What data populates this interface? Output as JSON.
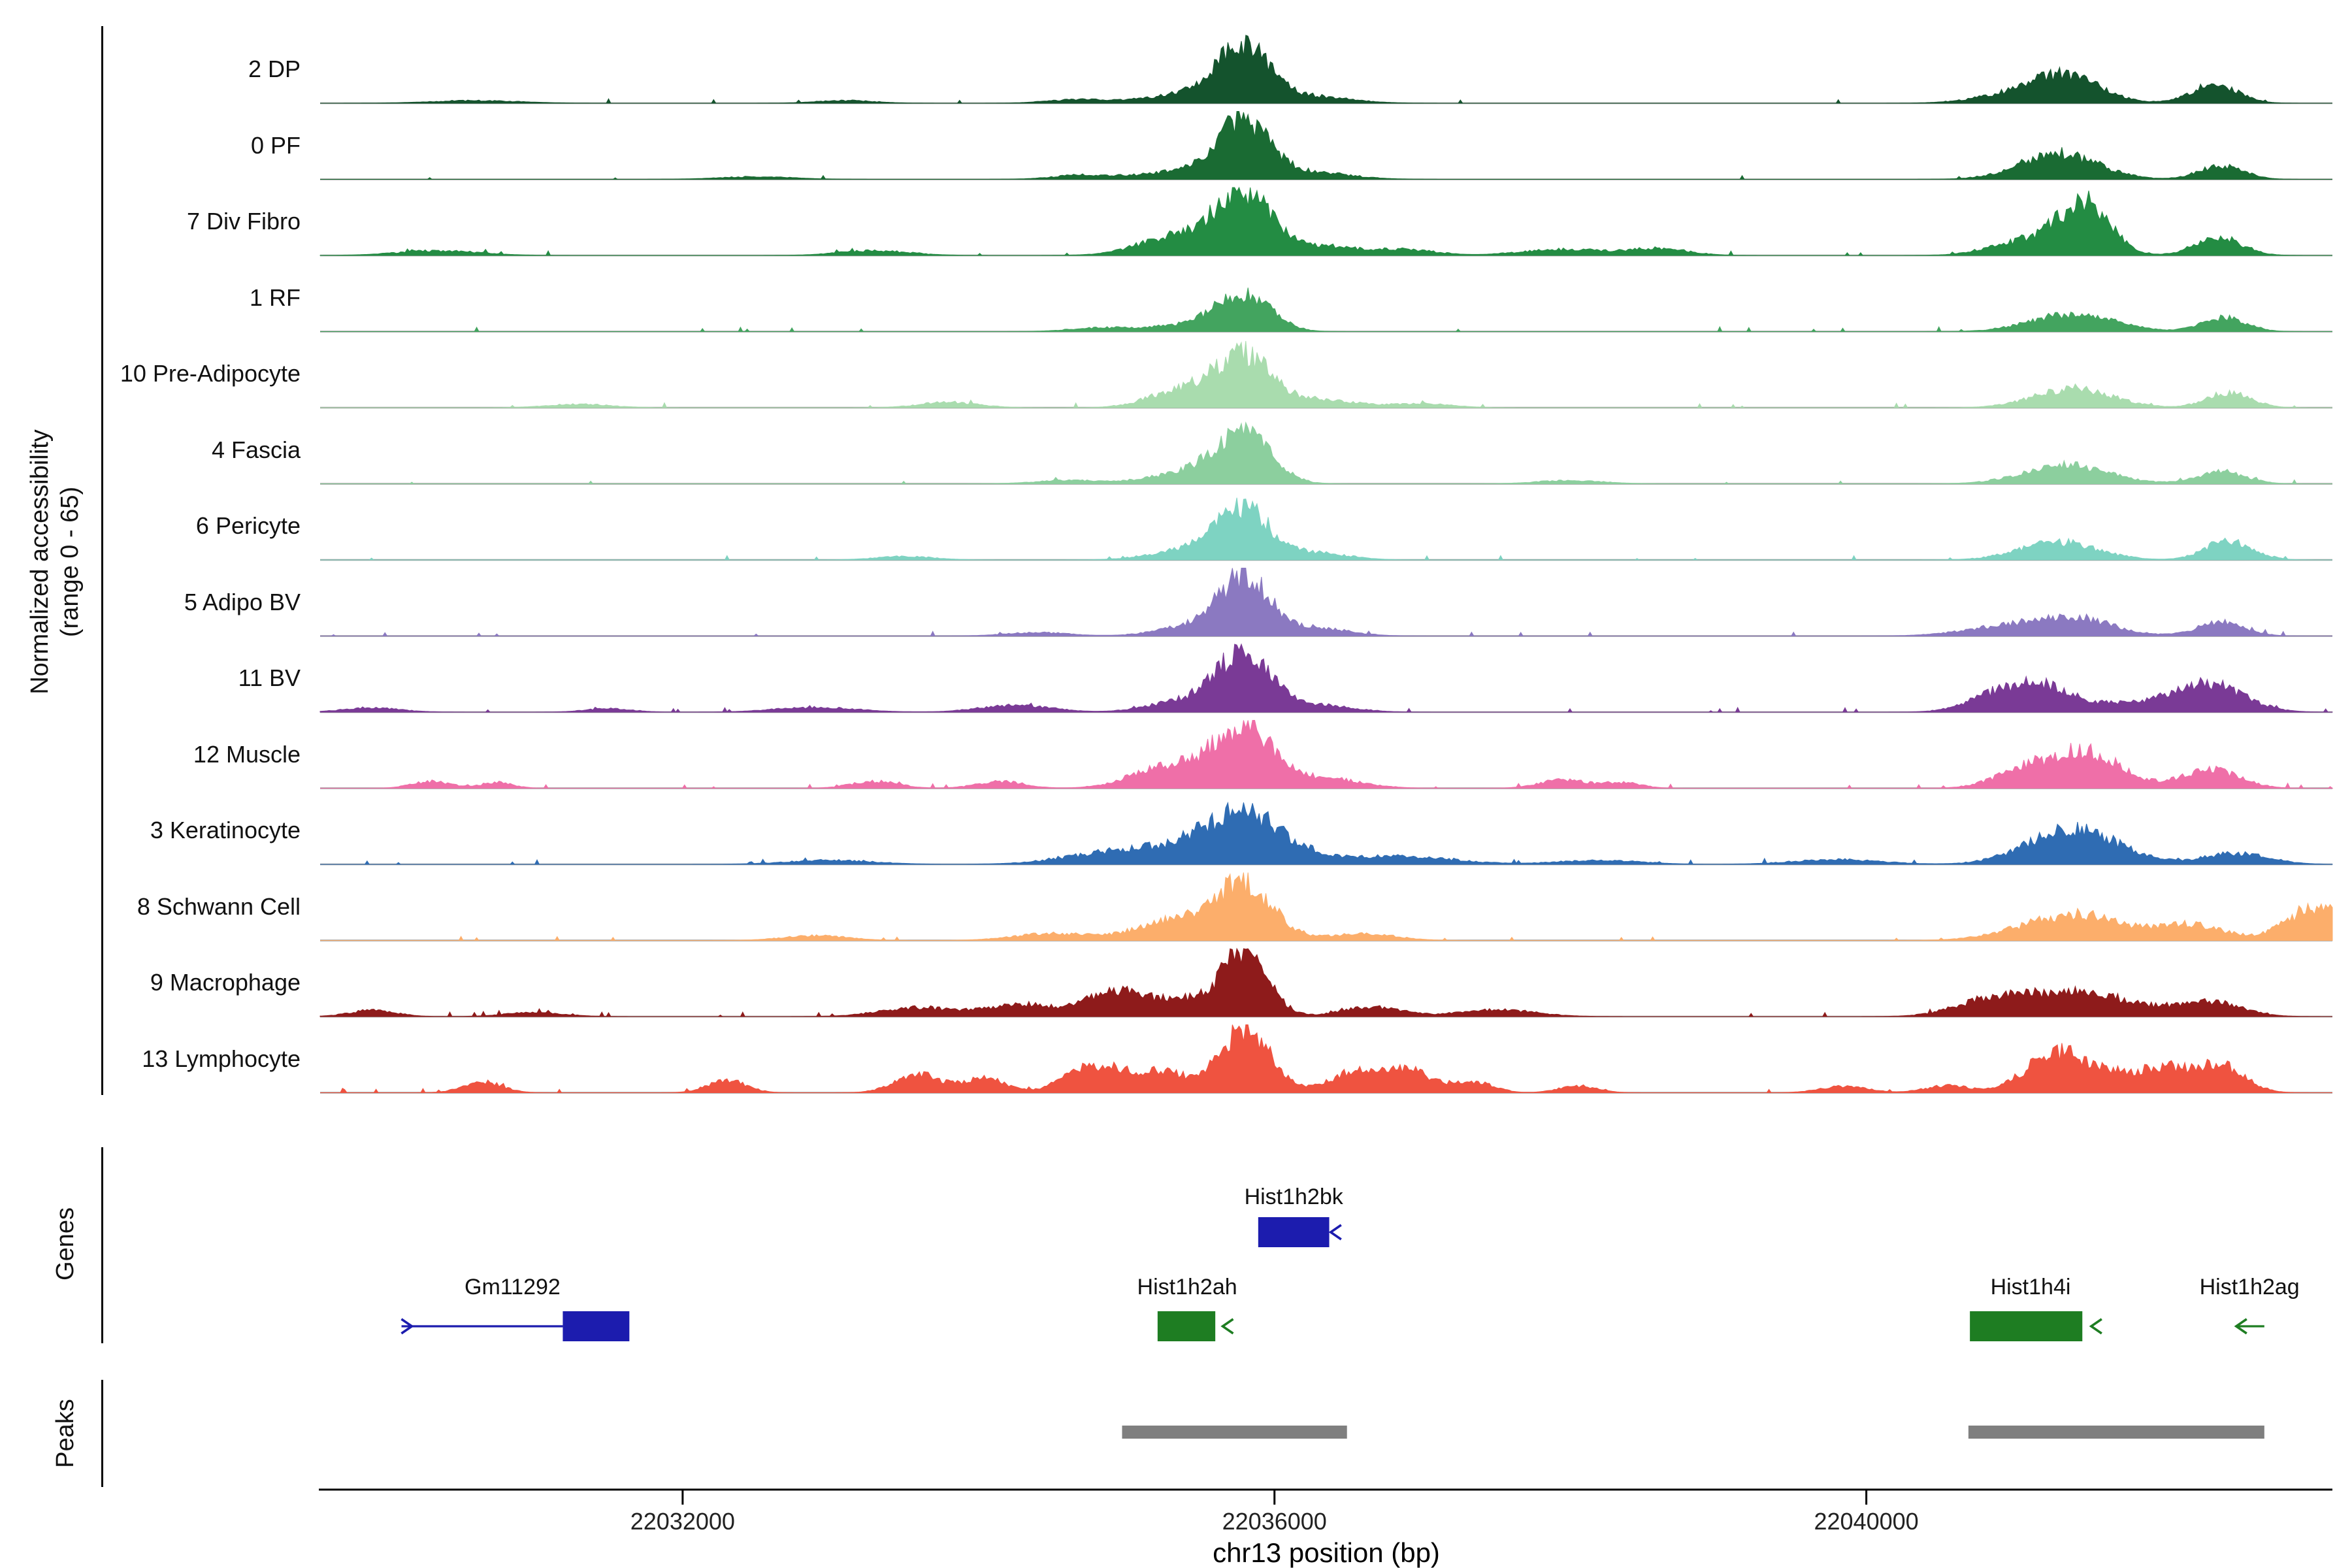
{
  "labels": {
    "y_axis_line1": "Normalized accessibility",
    "y_axis_line2": "(range 0 - 65)",
    "genes": "Genes",
    "peaks": "Peaks"
  },
  "chart_data": {
    "type": "area",
    "title": "",
    "xlabel": "chr13 position (bp)",
    "ylabel": "Normalized accessibility (range 0 - 65)",
    "x_range": [
      22029550,
      22043150
    ],
    "x_ticks": [
      22032000,
      22036000,
      22040000
    ],
    "y_range_per_track": [
      0,
      65
    ],
    "grid": false,
    "baseline_color": "#9b9b9b",
    "tracks": [
      {
        "label": "2 DP",
        "color": "#14532d",
        "seed": 1,
        "noise": 0.01,
        "bumps": [
          [
            22035790,
            170,
            0.8
          ],
          [
            22035450,
            300,
            0.14
          ],
          [
            22036250,
            260,
            0.1
          ],
          [
            22034650,
            200,
            0.05
          ],
          [
            22041350,
            230,
            0.4
          ],
          [
            22040950,
            250,
            0.1
          ],
          [
            22042350,
            160,
            0.27
          ],
          [
            22030600,
            300,
            0.04
          ],
          [
            22033100,
            200,
            0.04
          ]
        ]
      },
      {
        "label": "0 PF",
        "color": "#1a6b33",
        "seed": 2,
        "noise": 0.01,
        "bumps": [
          [
            22035790,
            175,
            0.78
          ],
          [
            22035450,
            300,
            0.13
          ],
          [
            22036250,
            260,
            0.1
          ],
          [
            22041300,
            260,
            0.38
          ],
          [
            22042400,
            150,
            0.2
          ],
          [
            22034700,
            200,
            0.06
          ],
          [
            22032500,
            250,
            0.04
          ]
        ]
      },
      {
        "label": "7 Div Fibro",
        "color": "#238c43",
        "seed": 3,
        "noise": 0.028,
        "bumps": [
          [
            22035790,
            180,
            0.88
          ],
          [
            22035350,
            260,
            0.28
          ],
          [
            22036300,
            260,
            0.14
          ],
          [
            22041480,
            170,
            0.72
          ],
          [
            22041100,
            240,
            0.22
          ],
          [
            22042380,
            160,
            0.26
          ],
          [
            22037950,
            280,
            0.09
          ],
          [
            22038600,
            200,
            0.1
          ],
          [
            22030350,
            280,
            0.07
          ],
          [
            22033300,
            240,
            0.07
          ],
          [
            22036900,
            200,
            0.08
          ]
        ]
      },
      {
        "label": "1 RF",
        "color": "#43a45f",
        "seed": 4,
        "noise": 0.014,
        "bumps": [
          [
            22035790,
            180,
            0.52
          ],
          [
            22035450,
            280,
            0.1
          ],
          [
            22041400,
            280,
            0.26
          ],
          [
            22042420,
            150,
            0.2
          ],
          [
            22034800,
            200,
            0.05
          ]
        ]
      },
      {
        "label": "10 Pre-Adipocyte",
        "color": "#a9dcae",
        "seed": 5,
        "noise": 0.022,
        "bumps": [
          [
            22035790,
            180,
            0.74
          ],
          [
            22035380,
            220,
            0.26
          ],
          [
            22036300,
            240,
            0.12
          ],
          [
            22041400,
            260,
            0.28
          ],
          [
            22042450,
            150,
            0.22
          ],
          [
            22033800,
            200,
            0.08
          ],
          [
            22031300,
            220,
            0.05
          ],
          [
            22037000,
            200,
            0.06
          ]
        ]
      },
      {
        "label": "4 Fascia",
        "color": "#8ccf9e",
        "seed": 6,
        "noise": 0.018,
        "bumps": [
          [
            22035790,
            185,
            0.7
          ],
          [
            22035420,
            260,
            0.16
          ],
          [
            22041350,
            280,
            0.28
          ],
          [
            22042400,
            160,
            0.18
          ],
          [
            22034600,
            220,
            0.05
          ],
          [
            22038000,
            220,
            0.05
          ]
        ]
      },
      {
        "label": "6 Pericyte",
        "color": "#7ed3c2",
        "seed": 7,
        "noise": 0.018,
        "bumps": [
          [
            22035790,
            180,
            0.7
          ],
          [
            22035430,
            250,
            0.15
          ],
          [
            22036280,
            220,
            0.1
          ],
          [
            22041300,
            260,
            0.26
          ],
          [
            22042450,
            160,
            0.28
          ],
          [
            22033500,
            200,
            0.05
          ]
        ]
      },
      {
        "label": "5 Adipo BV",
        "color": "#8b79c1",
        "seed": 8,
        "noise": 0.018,
        "bumps": [
          [
            22035800,
            165,
            0.8
          ],
          [
            22035480,
            240,
            0.16
          ],
          [
            22036260,
            230,
            0.12
          ],
          [
            22041400,
            260,
            0.26
          ],
          [
            22040900,
            280,
            0.12
          ],
          [
            22042400,
            160,
            0.2
          ],
          [
            22034400,
            220,
            0.05
          ]
        ]
      },
      {
        "label": "11 BV",
        "color": "#7a3a96",
        "seed": 9,
        "noise": 0.03,
        "bumps": [
          [
            22035800,
            175,
            0.84
          ],
          [
            22035420,
            240,
            0.18
          ],
          [
            22036300,
            230,
            0.1
          ],
          [
            22040950,
            220,
            0.33
          ],
          [
            22041250,
            160,
            0.26
          ],
          [
            22041700,
            220,
            0.12
          ],
          [
            22042300,
            240,
            0.42
          ],
          [
            22032900,
            280,
            0.07
          ],
          [
            22034250,
            240,
            0.1
          ],
          [
            22031500,
            160,
            0.05
          ],
          [
            22029900,
            200,
            0.06
          ]
        ]
      },
      {
        "label": "12 Muscle",
        "color": "#ef6fa8",
        "seed": 10,
        "noise": 0.03,
        "bumps": [
          [
            22035790,
            200,
            0.86
          ],
          [
            22035280,
            240,
            0.32
          ],
          [
            22036350,
            240,
            0.14
          ],
          [
            22041480,
            240,
            0.52
          ],
          [
            22041050,
            200,
            0.22
          ],
          [
            22042330,
            190,
            0.28
          ],
          [
            22030300,
            130,
            0.1
          ],
          [
            22030750,
            110,
            0.08
          ],
          [
            22033300,
            160,
            0.1
          ],
          [
            22034150,
            160,
            0.1
          ],
          [
            22037950,
            160,
            0.12
          ],
          [
            22038350,
            130,
            0.08
          ]
        ]
      },
      {
        "label": "3 Keratinocyte",
        "color": "#2f6cb3",
        "seed": 11,
        "noise": 0.035,
        "bumps": [
          [
            22035790,
            280,
            0.72
          ],
          [
            22035050,
            380,
            0.22
          ],
          [
            22036800,
            380,
            0.12
          ],
          [
            22041400,
            300,
            0.52
          ],
          [
            22042500,
            220,
            0.16
          ],
          [
            22039800,
            300,
            0.07
          ],
          [
            22033000,
            300,
            0.06
          ],
          [
            22038200,
            280,
            0.06
          ]
        ]
      },
      {
        "label": "8 Schwann Cell",
        "color": "#fcae6b",
        "seed": 12,
        "noise": 0.026,
        "bumps": [
          [
            22035790,
            200,
            0.78
          ],
          [
            22035330,
            260,
            0.28
          ],
          [
            22041400,
            340,
            0.38
          ],
          [
            22042200,
            220,
            0.22
          ],
          [
            22043050,
            200,
            0.5
          ],
          [
            22032900,
            220,
            0.07
          ],
          [
            22034500,
            260,
            0.1
          ],
          [
            22036600,
            220,
            0.1
          ]
        ]
      },
      {
        "label": "9 Macrophage",
        "color": "#8e1b1b",
        "seed": 13,
        "noise": 0.035,
        "bumps": [
          [
            22035800,
            155,
            0.95
          ],
          [
            22035350,
            200,
            0.25
          ],
          [
            22034900,
            180,
            0.36
          ],
          [
            22034300,
            220,
            0.18
          ],
          [
            22033600,
            260,
            0.13
          ],
          [
            22036650,
            200,
            0.14
          ],
          [
            22037500,
            260,
            0.1
          ],
          [
            22040900,
            260,
            0.28
          ],
          [
            22041500,
            300,
            0.33
          ],
          [
            22042300,
            220,
            0.22
          ],
          [
            22029900,
            160,
            0.09
          ],
          [
            22031000,
            200,
            0.06
          ]
        ]
      },
      {
        "label": "13 Lymphocyte",
        "color": "#ef5340",
        "seed": 14,
        "noise": 0.045,
        "bumps": [
          [
            22035800,
            165,
            0.95
          ],
          [
            22035250,
            160,
            0.3
          ],
          [
            22034800,
            200,
            0.4
          ],
          [
            22034050,
            130,
            0.22
          ],
          [
            22033600,
            160,
            0.26
          ],
          [
            22036600,
            200,
            0.34
          ],
          [
            22036950,
            150,
            0.24
          ],
          [
            22037350,
            130,
            0.16
          ],
          [
            22038050,
            130,
            0.1
          ],
          [
            22030650,
            130,
            0.16
          ],
          [
            22032300,
            130,
            0.18
          ],
          [
            22039850,
            160,
            0.09
          ],
          [
            22040550,
            150,
            0.1
          ],
          [
            22041300,
            210,
            0.6
          ],
          [
            22041750,
            150,
            0.22
          ],
          [
            22042050,
            150,
            0.32
          ],
          [
            22042400,
            160,
            0.38
          ]
        ]
      }
    ],
    "genes": [
      {
        "name": "Gm11292",
        "color": "#1c1cae",
        "row": "bottom",
        "label_bp": 22030850,
        "line": [
          22030100,
          22031190
        ],
        "box": [
          22031190,
          22031640
        ],
        "chevrons": [
          {
            "bp": 22030170,
            "dir": "right"
          }
        ]
      },
      {
        "name": "Hist1h2bk",
        "color": "#1c1cae",
        "row": "top",
        "label_bp": 22036130,
        "box": [
          22035890,
          22036370
        ],
        "chevrons": [
          {
            "bp": 22036380,
            "dir": "left"
          }
        ]
      },
      {
        "name": "Hist1h2ah",
        "color": "#1e7d22",
        "row": "bottom",
        "label_bp": 22035410,
        "box": [
          22035210,
          22035600
        ],
        "chevrons": [
          {
            "bp": 22035650,
            "dir": "left"
          }
        ]
      },
      {
        "name": "Hist1h4i",
        "color": "#1e7d22",
        "row": "bottom",
        "label_bp": 22041110,
        "box": [
          22040700,
          22041460
        ],
        "chevrons": [
          {
            "bp": 22041520,
            "dir": "left"
          }
        ]
      },
      {
        "name": "Hist1h2ag",
        "color": "#1e7d22",
        "row": "bottom",
        "label_bp": 22042590,
        "line": [
          22042500,
          22042690
        ],
        "chevrons": [
          {
            "bp": 22042500,
            "dir": "left"
          }
        ]
      }
    ],
    "peaks": [
      {
        "start": 22034970,
        "end": 22036490,
        "color": "#7f7f7f"
      },
      {
        "start": 22040690,
        "end": 22042690,
        "color": "#7f7f7f"
      }
    ]
  }
}
